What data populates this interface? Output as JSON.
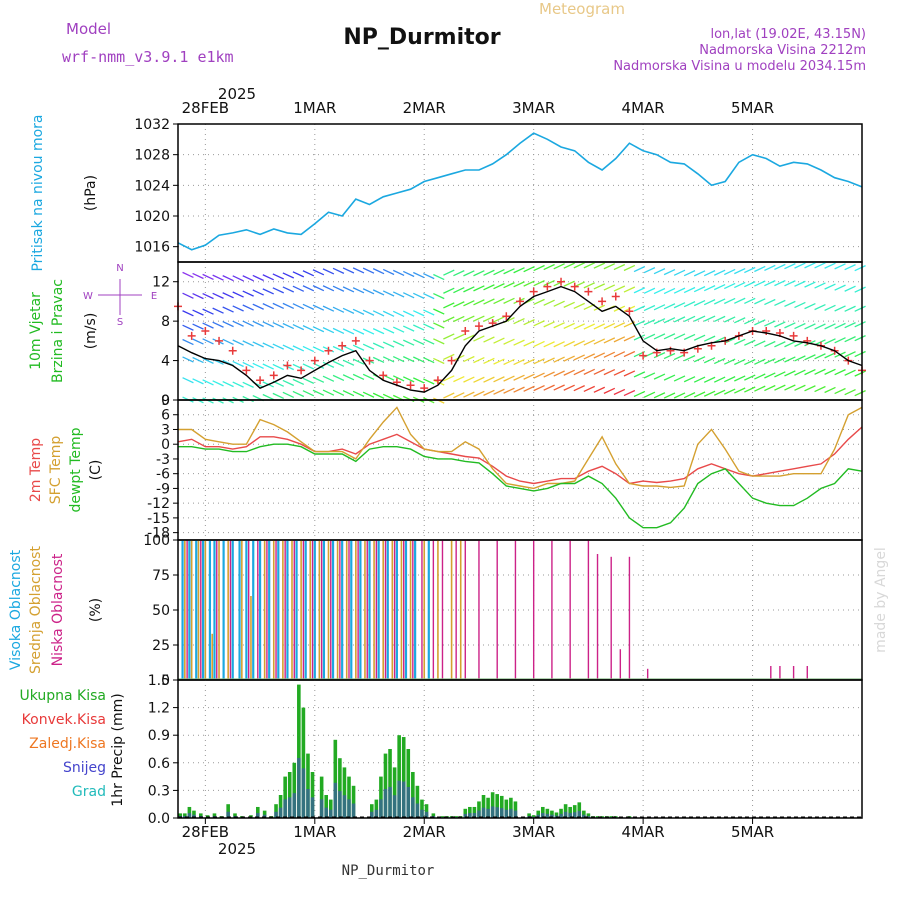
{
  "header": {
    "title": "NP_Durmitor",
    "subtitle": "Meteogram",
    "model_label": "Model",
    "model_name": "wrf-nmm_v3.9.1  e1km",
    "location": "lon,lat (19.02E, 43.15N)",
    "altitude": "Nadmorska Visina 2212m",
    "model_altitude": "Nadmorska Visina u modelu 2034.15m",
    "footer_station": "NP_Durmitor",
    "credit": "made by Angel"
  },
  "time_axis": {
    "year": "2025",
    "day_labels": [
      "28FEB",
      "1MAR",
      "2MAR",
      "3MAR",
      "4MAR",
      "5MAR"
    ],
    "day_positions_hours": [
      6,
      30,
      54,
      78,
      102,
      126
    ],
    "range_hours": [
      0,
      150
    ]
  },
  "colors": {
    "pressure": "#1ba8e0",
    "wind_speed": "#000000",
    "gusts": "#e83a3a",
    "temp_2m": "#e84a4a",
    "temp_sfc": "#d4a030",
    "dewpoint": "#22bb22",
    "cloud_high": "#1ba8e0",
    "cloud_mid": "#d4a030",
    "cloud_low": "#cc2288",
    "precip_total": "#22aa22",
    "precip_conv": "#e83a3a",
    "precip_frz": "#ee7722",
    "precip_snow": "#4444cc",
    "precip_hail": "#22bbbb",
    "model_label": "#a040c0"
  },
  "chart_data": [
    {
      "type": "line",
      "name": "pressure",
      "ylabel_main": "Pritisak na nivou mora",
      "ylabel_unit": "(hPa)",
      "ylim": [
        1014,
        1032
      ],
      "yticks": [
        1016,
        1020,
        1024,
        1028,
        1032
      ],
      "x": [
        0,
        3,
        6,
        9,
        12,
        15,
        18,
        21,
        24,
        27,
        30,
        33,
        36,
        39,
        42,
        45,
        48,
        51,
        54,
        57,
        60,
        63,
        66,
        69,
        72,
        75,
        78,
        81,
        84,
        87,
        90,
        93,
        96,
        99,
        102,
        105,
        108,
        111,
        114,
        117,
        120,
        123,
        126,
        129,
        132,
        135,
        138,
        141,
        144,
        147,
        150
      ],
      "values": [
        1016.5,
        1015.6,
        1016.2,
        1017.5,
        1017.8,
        1018.2,
        1017.6,
        1018.3,
        1017.8,
        1017.6,
        1019.0,
        1020.5,
        1020.0,
        1022.2,
        1021.5,
        1022.5,
        1023.0,
        1023.5,
        1024.5,
        1025.0,
        1025.5,
        1026.0,
        1026.0,
        1026.8,
        1028.0,
        1029.5,
        1030.8,
        1030.0,
        1029.0,
        1028.5,
        1027.0,
        1026.0,
        1027.5,
        1029.5,
        1028.5,
        1028.0,
        1027.0,
        1026.8,
        1025.5,
        1024.0,
        1024.5,
        1027.0,
        1028.0,
        1027.5,
        1026.5,
        1027.0,
        1026.8,
        1026.0,
        1025.0,
        1024.5,
        1023.8
      ]
    },
    {
      "type": "line",
      "name": "wind",
      "ylabel_main": "10m Vjetar",
      "ylabel_sub": "Brzina i Pravac",
      "ylabel_unit": "(m/s)",
      "compass": [
        "N",
        "W",
        "E",
        "S"
      ],
      "ylim": [
        0,
        14
      ],
      "yticks": [
        0,
        4,
        8,
        12
      ],
      "x": [
        0,
        3,
        6,
        9,
        12,
        15,
        18,
        21,
        24,
        27,
        30,
        33,
        36,
        39,
        42,
        45,
        48,
        51,
        54,
        57,
        60,
        63,
        66,
        69,
        72,
        75,
        78,
        81,
        84,
        87,
        90,
        93,
        96,
        99,
        102,
        105,
        108,
        111,
        114,
        117,
        120,
        123,
        126,
        129,
        132,
        135,
        138,
        141,
        144,
        147,
        150
      ],
      "speed": [
        5.5,
        4.8,
        4.2,
        4.0,
        3.5,
        2.5,
        1.2,
        1.8,
        2.5,
        2.2,
        3.0,
        3.8,
        4.5,
        5.0,
        3.0,
        2.0,
        1.5,
        1.0,
        0.8,
        1.5,
        3.0,
        5.5,
        7.0,
        7.5,
        8.0,
        9.5,
        10.5,
        11.0,
        11.5,
        11.0,
        10.0,
        9.0,
        9.5,
        8.5,
        6.0,
        5.0,
        5.2,
        5.0,
        5.5,
        5.8,
        6.0,
        6.5,
        7.0,
        6.8,
        6.5,
        6.0,
        5.8,
        5.5,
        5.0,
        4.0,
        3.5
      ],
      "gust": [
        9.5,
        6.5,
        7.0,
        6.0,
        5.0,
        3.0,
        2.0,
        2.5,
        3.5,
        3.0,
        4.0,
        5.0,
        5.5,
        6.0,
        4.0,
        2.5,
        1.8,
        1.5,
        1.2,
        2.0,
        4.0,
        7.0,
        7.5,
        7.8,
        8.5,
        10.0,
        11.0,
        11.5,
        12.0,
        11.5,
        11.0,
        10.0,
        10.5,
        9.0,
        4.5,
        4.8,
        5.0,
        4.8,
        5.2,
        5.5,
        6.0,
        6.5,
        7.0,
        7.0,
        6.8,
        6.5,
        6.0,
        5.5,
        5.0,
        4.0,
        3.0
      ]
    },
    {
      "type": "line",
      "name": "temperature",
      "ylabel_lines": [
        "2m Temp",
        "SFC Temp",
        "dewpt Temp"
      ],
      "ylabel_unit": "(C)",
      "ylim": [
        -19.5,
        9
      ],
      "yticks": [
        -18,
        -15,
        -12,
        -9,
        -6,
        -3,
        0,
        3,
        6,
        9
      ],
      "x": [
        0,
        3,
        6,
        9,
        12,
        15,
        18,
        21,
        24,
        27,
        30,
        33,
        36,
        39,
        42,
        45,
        48,
        51,
        54,
        57,
        60,
        63,
        66,
        69,
        72,
        75,
        78,
        81,
        84,
        87,
        90,
        93,
        96,
        99,
        102,
        105,
        108,
        111,
        114,
        117,
        120,
        123,
        126,
        129,
        132,
        135,
        138,
        141,
        144,
        147,
        150
      ],
      "series": [
        {
          "name": "2m Temp",
          "values": [
            0.5,
            1.0,
            -0.5,
            -0.5,
            -1.0,
            -0.5,
            1.5,
            1.5,
            1.0,
            0.0,
            -1.5,
            -1.5,
            -1.0,
            -2.0,
            0.0,
            1.0,
            2.0,
            0.5,
            -1.0,
            -1.5,
            -2.0,
            -2.5,
            -2.8,
            -4.5,
            -6.5,
            -7.5,
            -8.0,
            -7.5,
            -7.0,
            -7.0,
            -5.5,
            -4.5,
            -6.0,
            -8.0,
            -7.5,
            -7.8,
            -7.5,
            -7.0,
            -5.0,
            -4.0,
            -5.0,
            -6.0,
            -6.5,
            -6.0,
            -5.5,
            -5.0,
            -4.5,
            -4.0,
            -2.0,
            1.0,
            3.5
          ]
        },
        {
          "name": "SFC Temp",
          "values": [
            3.0,
            3.0,
            1.0,
            0.5,
            0.0,
            0.0,
            5.0,
            4.0,
            2.5,
            0.5,
            -1.5,
            -1.5,
            -1.5,
            -3.0,
            1.0,
            4.5,
            7.5,
            2.0,
            -1.0,
            -1.5,
            -1.5,
            0.5,
            -1.0,
            -5.0,
            -8.0,
            -8.5,
            -9.0,
            -8.0,
            -8.0,
            -7.5,
            -3.0,
            1.5,
            -4.0,
            -8.0,
            -8.5,
            -8.5,
            -8.8,
            -8.5,
            0.0,
            3.0,
            -1.0,
            -5.5,
            -6.5,
            -6.5,
            -6.5,
            -6.0,
            -6.0,
            -6.0,
            -1.0,
            6.0,
            7.5
          ]
        },
        {
          "name": "dewpt Temp",
          "values": [
            -0.5,
            -0.5,
            -1.0,
            -1.0,
            -1.5,
            -1.5,
            -0.5,
            0.0,
            0.0,
            -0.5,
            -2.0,
            -2.0,
            -2.0,
            -3.5,
            -1.0,
            -0.5,
            -0.5,
            -1.0,
            -2.5,
            -3.0,
            -3.0,
            -3.5,
            -3.8,
            -6.0,
            -8.5,
            -9.0,
            -9.5,
            -9.0,
            -8.0,
            -8.0,
            -6.5,
            -8.0,
            -11.0,
            -15.0,
            -17.0,
            -17.0,
            -16.0,
            -13.0,
            -8.0,
            -6.0,
            -5.0,
            -8.0,
            -11.0,
            -12.0,
            -12.5,
            -12.5,
            -11.0,
            -9.0,
            -8.0,
            -5.0,
            -5.5
          ]
        }
      ]
    },
    {
      "type": "bar",
      "name": "cloud",
      "ylabel_lines": [
        "Visoka Oblacnost",
        "Srednja Oblacnost",
        "Niska Oblacnost"
      ],
      "ylabel_unit": "(%)",
      "ylim": [
        0,
        100
      ],
      "yticks": [
        0,
        25,
        50,
        75,
        100
      ],
      "series": [
        {
          "name": "Visoka Oblacnost",
          "x": [
            1,
            2.5,
            4,
            5.5,
            7,
            8,
            10,
            12,
            13.5,
            15,
            16.5,
            18,
            20,
            22,
            24,
            26,
            28,
            30,
            32,
            34,
            36,
            38,
            40,
            42,
            44,
            46,
            48,
            50,
            52,
            55
          ],
          "values": [
            100,
            100,
            100,
            100,
            100,
            100,
            100,
            100,
            100,
            100,
            100,
            100,
            100,
            100,
            100,
            100,
            100,
            100,
            100,
            100,
            100,
            100,
            100,
            100,
            100,
            100,
            100,
            100,
            100,
            100
          ]
        },
        {
          "name": "Srednja Oblacnost",
          "x": [
            1.5,
            3,
            4.5,
            6,
            7.5,
            9,
            11,
            14,
            16,
            19,
            21,
            23,
            25,
            27,
            29,
            31,
            33,
            35,
            37,
            39,
            41,
            43,
            45,
            47,
            49,
            51,
            54,
            57,
            60,
            62
          ],
          "values": [
            100,
            100,
            100,
            100,
            33,
            100,
            100,
            100,
            60,
            100,
            100,
            100,
            100,
            100,
            100,
            100,
            100,
            100,
            100,
            100,
            100,
            100,
            100,
            100,
            100,
            100,
            100,
            100,
            100,
            100
          ]
        },
        {
          "name": "Niska Oblacnost",
          "x": [
            2,
            5,
            8.5,
            11.5,
            15.5,
            17.5,
            19.5,
            21.5,
            23.5,
            25.5,
            27.5,
            29.5,
            31.5,
            33.5,
            35.5,
            37.5,
            39.5,
            41.5,
            43.5,
            45.5,
            47.5,
            49.5,
            51.5,
            53.5,
            56,
            58,
            61,
            63,
            66,
            70,
            74,
            78,
            82,
            86,
            90,
            92,
            95,
            97,
            99,
            103,
            130,
            132,
            135,
            138
          ],
          "values": [
            100,
            100,
            100,
            100,
            100,
            100,
            100,
            100,
            100,
            100,
            100,
            100,
            100,
            100,
            100,
            100,
            100,
            100,
            100,
            100,
            100,
            100,
            100,
            100,
            100,
            100,
            100,
            100,
            100,
            100,
            100,
            100,
            100,
            100,
            100,
            90,
            88,
            22,
            88,
            8,
            10,
            10,
            10,
            10
          ]
        }
      ]
    },
    {
      "type": "bar",
      "name": "precipitation",
      "ylabel_lines": [
        "Ukupna Kisa",
        "Konvek.Kisa",
        "Zaledj.Kisa",
        "Snijeg",
        "Grad"
      ],
      "ylabel_unit": "1hr Precip (mm)",
      "ylim": [
        0,
        1.5
      ],
      "yticks": [
        0,
        0.3,
        0.6,
        0.9,
        1.2,
        1.5
      ],
      "x": [
        0.5,
        1.5,
        2.5,
        3.5,
        5,
        6.5,
        8,
        9.5,
        11,
        12.5,
        14,
        16,
        17.5,
        19,
        20.5,
        21.5,
        22.5,
        23.5,
        24.5,
        25.5,
        26.5,
        27.5,
        28.5,
        29.5,
        31.5,
        32.5,
        33.5,
        34.5,
        35.5,
        36.5,
        37.5,
        38.5,
        42.5,
        43.5,
        44.5,
        45.5,
        46.5,
        47.5,
        48.5,
        49.5,
        50.5,
        51.5,
        52.5,
        53.5,
        54.5,
        56,
        58,
        59,
        60,
        61,
        62,
        63,
        64,
        65,
        66,
        67,
        68,
        69,
        70,
        71,
        72,
        73,
        74,
        77,
        78,
        79,
        80,
        81,
        82,
        83,
        84,
        85,
        86,
        87,
        88,
        89,
        90,
        91,
        92,
        93,
        94,
        95,
        96,
        97,
        99
      ],
      "total": [
        0.05,
        0.05,
        0.12,
        0.08,
        0.05,
        0.03,
        0.05,
        0.02,
        0.15,
        0.05,
        0.02,
        0.03,
        0.12,
        0.08,
        0.02,
        0.15,
        0.25,
        0.45,
        0.5,
        0.6,
        1.45,
        1.2,
        0.7,
        0.5,
        0.45,
        0.25,
        0.2,
        0.85,
        0.65,
        0.55,
        0.45,
        0.35,
        0.15,
        0.2,
        0.45,
        0.7,
        0.75,
        0.55,
        0.9,
        0.88,
        0.75,
        0.5,
        0.35,
        0.2,
        0.15,
        0.05,
        0.02,
        0.02,
        0.02,
        0.02,
        0.02,
        0.1,
        0.12,
        0.12,
        0.18,
        0.25,
        0.22,
        0.28,
        0.26,
        0.24,
        0.2,
        0.22,
        0.18,
        0.05,
        0.03,
        0.08,
        0.12,
        0.1,
        0.08,
        0.06,
        0.1,
        0.15,
        0.12,
        0.14,
        0.17,
        0.08,
        0.05,
        0.02,
        0.02,
        0.02,
        0.02,
        0.02,
        0.02,
        0.01,
        0.02
      ]
    }
  ]
}
